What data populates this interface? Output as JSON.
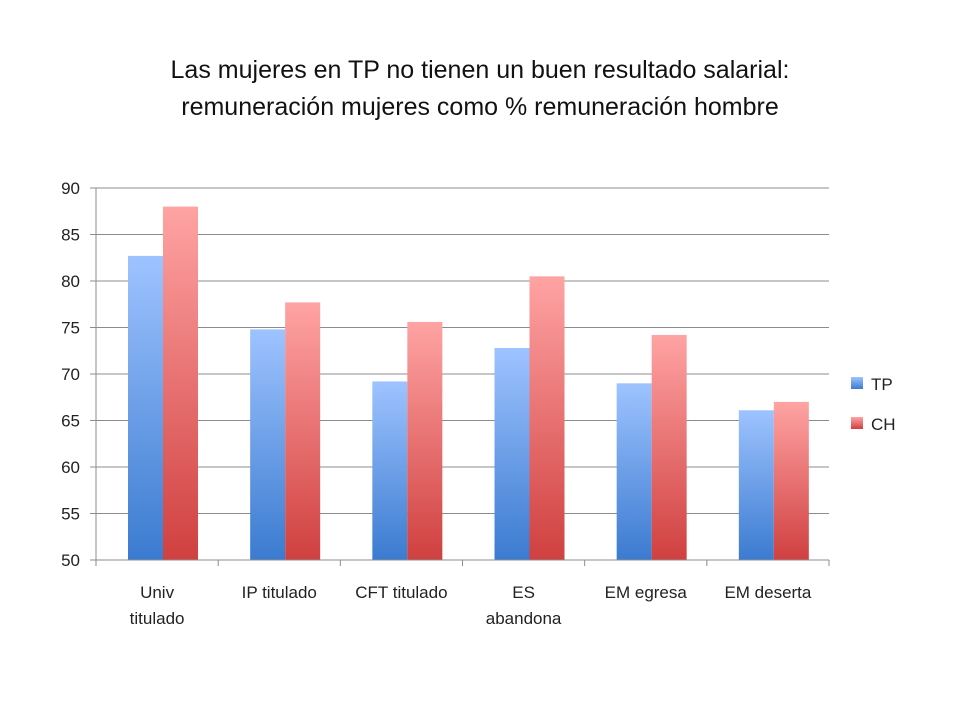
{
  "title": {
    "line1": "Las mujeres en TP no tienen un buen resultado salarial:",
    "line2": "remuneración mujeres como % remuneración hombre"
  },
  "chart_data": {
    "type": "bar",
    "title": "Las mujeres en TP no tienen un buen resultado salarial: remuneración mujeres como % remuneración hombre",
    "categories": [
      [
        "Univ",
        "titulado"
      ],
      [
        "IP titulado"
      ],
      [
        "CFT titulado"
      ],
      [
        "ES",
        "abandona"
      ],
      [
        "EM egresa"
      ],
      [
        "EM deserta"
      ]
    ],
    "series": [
      {
        "name": "TP",
        "values": [
          82.7,
          74.8,
          69.2,
          72.8,
          69.0,
          66.1
        ],
        "color_top": "#9ec3ff",
        "color_bottom": "#3b7bd0"
      },
      {
        "name": "CH",
        "values": [
          88.0,
          77.7,
          75.6,
          80.5,
          74.2,
          67.0
        ],
        "color_top": "#ffa3a3",
        "color_bottom": "#d04040"
      }
    ],
    "ylim": [
      50,
      90
    ],
    "yticks": [
      50,
      55,
      60,
      65,
      70,
      75,
      80,
      85,
      90
    ],
    "grid": true,
    "legend_position": "right",
    "xlabel": "",
    "ylabel": ""
  }
}
